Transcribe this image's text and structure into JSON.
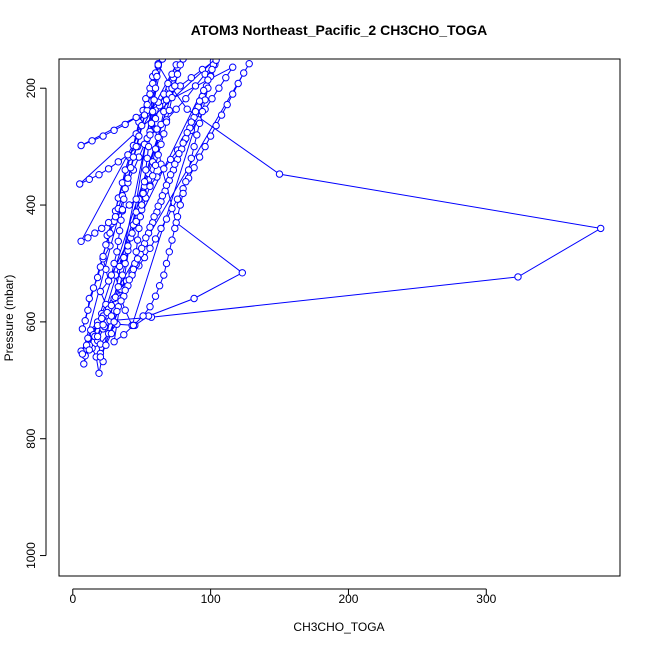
{
  "chart_data": {
    "type": "line",
    "title": "ATOM3 Northeast_Pacific_2 CH3CHO_TOGA",
    "xlabel": "CH3CHO_TOGA",
    "ylabel": "Pressure (mbar)",
    "xlim": [
      -10,
      397
    ],
    "ylim": [
      1035,
      150
    ],
    "y_reversed": true,
    "grid": false,
    "legend": "none",
    "x_ticks": [
      0,
      100,
      200,
      300
    ],
    "y_ticks": [
      200,
      400,
      600,
      800,
      1000
    ],
    "series": [
      {
        "color": "#0000ff",
        "marker": "open-circle",
        "points": [
          [
            22,
            668
          ],
          [
            20,
            654
          ],
          [
            18,
            632
          ],
          [
            22,
            612
          ],
          [
            25,
            600
          ],
          [
            21,
            586
          ],
          [
            24,
            570
          ],
          [
            20,
            548
          ],
          [
            26,
            530
          ],
          [
            24,
            510
          ],
          [
            22,
            492
          ],
          [
            27,
            470
          ],
          [
            25,
            452
          ],
          [
            28,
            432
          ],
          [
            31,
            410
          ],
          [
            33,
            388
          ],
          [
            36,
            362
          ],
          [
            38,
            340
          ],
          [
            41,
            318
          ],
          [
            44,
            298
          ],
          [
            46,
            278
          ],
          [
            48,
            258
          ],
          [
            51,
            238
          ],
          [
            53,
            218
          ],
          [
            56,
            200
          ],
          [
            59,
            180
          ],
          [
            62,
            162
          ],
          [
            65,
            150
          ],
          [
            19,
            688
          ],
          [
            17,
            660
          ],
          [
            14,
            645
          ],
          [
            11,
            628
          ],
          [
            13,
            614
          ],
          [
            18,
            600
          ],
          [
            22,
            590
          ],
          [
            26,
            578
          ],
          [
            30,
            560
          ],
          [
            34,
            540
          ],
          [
            36,
            520
          ],
          [
            38,
            500
          ],
          [
            40,
            478
          ],
          [
            42,
            456
          ],
          [
            44,
            434
          ],
          [
            46,
            412
          ],
          [
            48,
            390
          ],
          [
            52,
            368
          ],
          [
            55,
            346
          ],
          [
            58,
            326
          ],
          [
            60,
            304
          ],
          [
            62,
            284
          ],
          [
            64,
            262
          ],
          [
            66,
            240
          ],
          [
            68,
            220
          ],
          [
            70,
            200
          ],
          [
            73,
            182
          ],
          [
            76,
            164
          ],
          [
            80,
            150
          ],
          [
            8,
            672
          ],
          [
            9,
            658
          ],
          [
            12,
            640
          ],
          [
            15,
            622
          ],
          [
            18,
            606
          ],
          [
            21,
            594
          ],
          [
            25,
            584
          ],
          [
            28,
            572
          ],
          [
            31,
            558
          ],
          [
            35,
            544
          ],
          [
            39,
            530
          ],
          [
            43,
            516
          ],
          [
            48,
            504
          ],
          [
            52,
            490
          ],
          [
            56,
            474
          ],
          [
            60,
            458
          ],
          [
            64,
            440
          ],
          [
            68,
            424
          ],
          [
            72,
            406
          ],
          [
            76,
            390
          ],
          [
            80,
            372
          ],
          [
            84,
            354
          ],
          [
            88,
            336
          ],
          [
            92,
            318
          ],
          [
            96,
            300
          ],
          [
            100,
            282
          ],
          [
            104,
            264
          ],
          [
            108,
            246
          ],
          [
            112,
            228
          ],
          [
            116,
            210
          ],
          [
            120,
            192
          ],
          [
            124,
            174
          ],
          [
            128,
            158
          ],
          [
            6,
            650
          ],
          [
            10,
            640
          ],
          [
            16,
            625
          ],
          [
            23,
            608
          ],
          [
            27,
            598
          ],
          [
            57,
            592
          ],
          [
            323,
            523
          ],
          [
            383,
            440
          ],
          [
            150,
            347
          ],
          [
            83,
            236
          ],
          [
            72,
            200
          ],
          [
            62,
            160
          ],
          [
            7,
            655
          ],
          [
            12,
            648
          ],
          [
            20,
            638
          ],
          [
            26,
            620
          ],
          [
            32,
            604
          ],
          [
            45,
            606
          ],
          [
            55,
            590
          ],
          [
            88,
            560
          ],
          [
            123,
            516
          ],
          [
            75,
            430
          ],
          [
            64,
            330
          ],
          [
            60,
            270
          ],
          [
            56,
            210
          ],
          [
            58,
            180
          ],
          [
            7,
            612
          ],
          [
            9,
            598
          ],
          [
            11,
            580
          ],
          [
            12,
            560
          ],
          [
            15,
            542
          ],
          [
            18,
            524
          ],
          [
            20,
            506
          ],
          [
            22,
            488
          ],
          [
            24,
            468
          ],
          [
            27,
            448
          ],
          [
            30,
            428
          ],
          [
            33,
            406
          ],
          [
            36,
            384
          ],
          [
            40,
            362
          ],
          [
            44,
            340
          ],
          [
            48,
            318
          ],
          [
            52,
            296
          ],
          [
            56,
            274
          ],
          [
            60,
            252
          ],
          [
            63,
            230
          ],
          [
            66,
            210
          ],
          [
            69,
            192
          ],
          [
            72,
            176
          ],
          [
            75,
            160
          ],
          [
            6,
            462
          ],
          [
            11,
            456
          ],
          [
            16,
            448
          ],
          [
            21,
            440
          ],
          [
            26,
            430
          ],
          [
            31,
            420
          ],
          [
            36,
            410
          ],
          [
            41,
            400
          ],
          [
            46,
            390
          ],
          [
            51,
            378
          ],
          [
            56,
            366
          ],
          [
            61,
            352
          ],
          [
            66,
            338
          ],
          [
            71,
            322
          ],
          [
            76,
            306
          ],
          [
            81,
            290
          ],
          [
            86,
            272
          ],
          [
            91,
            254
          ],
          [
            96,
            236
          ],
          [
            101,
            218
          ],
          [
            106,
            200
          ],
          [
            111,
            182
          ],
          [
            116,
            164
          ],
          [
            6,
            298
          ],
          [
            14,
            290
          ],
          [
            22,
            282
          ],
          [
            30,
            272
          ],
          [
            38,
            262
          ],
          [
            46,
            250
          ],
          [
            54,
            238
          ],
          [
            62,
            224
          ],
          [
            70,
            210
          ],
          [
            78,
            196
          ],
          [
            86,
            182
          ],
          [
            94,
            168
          ],
          [
            102,
            154
          ],
          [
            5,
            364
          ],
          [
            12,
            356
          ],
          [
            19,
            348
          ],
          [
            26,
            338
          ],
          [
            33,
            326
          ],
          [
            40,
            314
          ],
          [
            47,
            300
          ],
          [
            54,
            286
          ],
          [
            61,
            270
          ],
          [
            68,
            254
          ],
          [
            75,
            236
          ],
          [
            82,
            218
          ],
          [
            89,
            196
          ],
          [
            96,
            176
          ],
          [
            103,
            158
          ],
          [
            43,
            606
          ],
          [
            38,
            580
          ],
          [
            35,
            560
          ],
          [
            33,
            540
          ],
          [
            31,
            520
          ],
          [
            34,
            505
          ],
          [
            37,
            490
          ],
          [
            40,
            470
          ],
          [
            43,
            448
          ],
          [
            46,
            428
          ],
          [
            50,
            408
          ],
          [
            53,
            388
          ],
          [
            56,
            368
          ],
          [
            58,
            350
          ],
          [
            60,
            332
          ],
          [
            62,
            314
          ],
          [
            64,
            296
          ],
          [
            66,
            278
          ],
          [
            68,
            258
          ],
          [
            70,
            238
          ],
          [
            72,
            216
          ],
          [
            74,
            196
          ],
          [
            76,
            176
          ],
          [
            78,
            160
          ],
          [
            18,
            625
          ],
          [
            22,
            605
          ],
          [
            28,
            590
          ],
          [
            33,
            574
          ],
          [
            37,
            556
          ],
          [
            40,
            538
          ],
          [
            43,
            520
          ],
          [
            46,
            502
          ],
          [
            49,
            484
          ],
          [
            52,
            466
          ],
          [
            55,
            448
          ],
          [
            58,
            430
          ],
          [
            61,
            412
          ],
          [
            64,
            394
          ],
          [
            67,
            376
          ],
          [
            70,
            358
          ],
          [
            73,
            340
          ],
          [
            76,
            322
          ],
          [
            79,
            304
          ],
          [
            82,
            286
          ],
          [
            85,
            268
          ],
          [
            88,
            250
          ],
          [
            91,
            232
          ],
          [
            94,
            214
          ],
          [
            97,
            196
          ],
          [
            100,
            178
          ],
          [
            103,
            160
          ],
          [
            28,
            520
          ],
          [
            30,
            500
          ],
          [
            32,
            480
          ],
          [
            33,
            462
          ],
          [
            34,
            444
          ],
          [
            35,
            426
          ],
          [
            36,
            408
          ],
          [
            37,
            390
          ],
          [
            38,
            372
          ],
          [
            40,
            354
          ],
          [
            42,
            336
          ],
          [
            44,
            318
          ],
          [
            46,
            300
          ],
          [
            48,
            282
          ],
          [
            50,
            264
          ],
          [
            52,
            246
          ],
          [
            54,
            228
          ],
          [
            56,
            210
          ],
          [
            58,
            192
          ],
          [
            60,
            174
          ],
          [
            62,
            158
          ],
          [
            45,
            500
          ],
          [
            46,
            480
          ],
          [
            47,
            460
          ],
          [
            48,
            440
          ],
          [
            49,
            420
          ],
          [
            50,
            400
          ],
          [
            51,
            380
          ],
          [
            52,
            360
          ],
          [
            53,
            340
          ],
          [
            54,
            320
          ],
          [
            55,
            300
          ],
          [
            56,
            280
          ],
          [
            57,
            260
          ],
          [
            58,
            240
          ],
          [
            59,
            220
          ],
          [
            60,
            200
          ],
          [
            61,
            180
          ],
          [
            62,
            160
          ],
          [
            30,
            634
          ],
          [
            37,
            622
          ],
          [
            44,
            606
          ],
          [
            51,
            590
          ],
          [
            56,
            574
          ],
          [
            60,
            556
          ],
          [
            63,
            538
          ],
          [
            66,
            520
          ],
          [
            68,
            500
          ],
          [
            70,
            480
          ],
          [
            72,
            460
          ],
          [
            74,
            440
          ],
          [
            76,
            420
          ],
          [
            78,
            400
          ],
          [
            80,
            380
          ],
          [
            82,
            360
          ],
          [
            84,
            340
          ],
          [
            86,
            320
          ],
          [
            88,
            300
          ],
          [
            90,
            280
          ],
          [
            92,
            260
          ],
          [
            94,
            240
          ],
          [
            96,
            220
          ],
          [
            98,
            200
          ],
          [
            100,
            180
          ],
          [
            102,
            160
          ],
          [
            20,
            660
          ],
          [
            24,
            640
          ],
          [
            28,
            620
          ],
          [
            30,
            600
          ],
          [
            32,
            582
          ],
          [
            35,
            564
          ],
          [
            38,
            546
          ],
          [
            41,
            528
          ],
          [
            44,
            510
          ],
          [
            47,
            492
          ],
          [
            50,
            474
          ],
          [
            53,
            456
          ],
          [
            56,
            438
          ],
          [
            59,
            420
          ],
          [
            62,
            402
          ],
          [
            65,
            384
          ],
          [
            68,
            366
          ],
          [
            71,
            348
          ],
          [
            74,
            330
          ],
          [
            77,
            312
          ],
          [
            80,
            294
          ],
          [
            83,
            276
          ],
          [
            86,
            258
          ],
          [
            89,
            240
          ],
          [
            92,
            222
          ],
          [
            95,
            204
          ],
          [
            98,
            186
          ],
          [
            101,
            168
          ],
          [
            104,
            152
          ]
        ]
      }
    ]
  }
}
